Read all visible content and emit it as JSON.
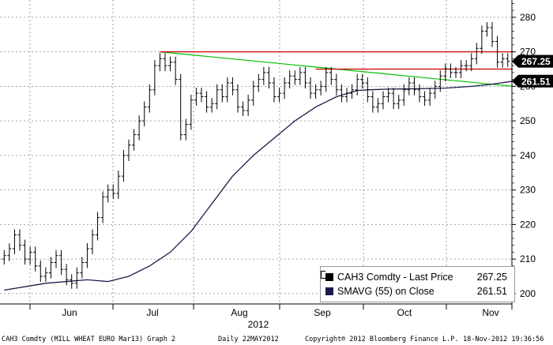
{
  "chart_data": {
    "type": "bar",
    "style": "ohlc",
    "ticker": "CAH3 Comdty",
    "ylim": [
      197,
      285
    ],
    "yticks": [
      200,
      210,
      220,
      230,
      240,
      250,
      260,
      270,
      280
    ],
    "xlabels": [
      "Jun",
      "Jul",
      "Aug",
      "Sep",
      "Oct",
      "Nov"
    ],
    "xlabel": "2012",
    "grid": true,
    "price_series": {
      "name": "CAH3 Comdty - Last Price",
      "color": "#000000",
      "closes": [
        211,
        213,
        217,
        214,
        210,
        212,
        208,
        205,
        206,
        209,
        211,
        207,
        204,
        203,
        206,
        209,
        213,
        217,
        222,
        228,
        230,
        229,
        234,
        240,
        243,
        246,
        250,
        254,
        259,
        266,
        268,
        266,
        267,
        262,
        246,
        249,
        256,
        258,
        257,
        254,
        255,
        259,
        257,
        261,
        259,
        254,
        253,
        256,
        260,
        262,
        264,
        261,
        257,
        258,
        261,
        263,
        262,
        264,
        261,
        258,
        259,
        260,
        264,
        262,
        259,
        257,
        258,
        259,
        262,
        261,
        257,
        254,
        255,
        257,
        258,
        255,
        256,
        259,
        261,
        259,
        257,
        256,
        258,
        260,
        263,
        265,
        264,
        264,
        266,
        266,
        268,
        271,
        276,
        277,
        273,
        267,
        268,
        267.25
      ],
      "last_value": 267.25,
      "last_label": "267.25"
    },
    "sma_series": {
      "name": "SMAVG (55) on Close",
      "color": "#1a1a4a",
      "points": [
        [
          0,
          201
        ],
        [
          8,
          203
        ],
        [
          16,
          204
        ],
        [
          20,
          203.5
        ],
        [
          24,
          205
        ],
        [
          28,
          208
        ],
        [
          32,
          212
        ],
        [
          36,
          218
        ],
        [
          40,
          226
        ],
        [
          44,
          234
        ],
        [
          48,
          240
        ],
        [
          52,
          245
        ],
        [
          56,
          250
        ],
        [
          60,
          254
        ],
        [
          64,
          257
        ],
        [
          68,
          258.8
        ],
        [
          70,
          259
        ],
        [
          74,
          259.2
        ],
        [
          80,
          259.3
        ],
        [
          85,
          259.5
        ],
        [
          90,
          260
        ],
        [
          94,
          260.6
        ],
        [
          98,
          261.51
        ]
      ],
      "last_value": 261.51,
      "last_label": "261.51"
    },
    "trend_lines": [
      {
        "color": "#00c000",
        "from": [
          30,
          270
        ],
        "to": [
          98,
          260
        ]
      },
      {
        "color": "#cc0000",
        "from": [
          30,
          270
        ],
        "to": [
          98,
          270
        ]
      },
      {
        "color": "#cc0000",
        "from": [
          60,
          265
        ],
        "to": [
          98,
          265
        ]
      }
    ]
  },
  "legend": {
    "items": [
      {
        "label": "CAH3 Comdty - Last Price",
        "value": "267.25",
        "color": "#000000"
      },
      {
        "label": "SMAVG (55) on Close",
        "value": "261.51",
        "color": "#1a1a4a"
      }
    ]
  },
  "footer": {
    "left": "CAH3 Comdty (MILL WHEAT EURO  Mar13) Graph 2",
    "center": "Daily 22MAY2012",
    "copyright": "Copyright® 2012 Bloomberg Finance L.P.",
    "right": "18-Nov-2012 19:36:56"
  }
}
